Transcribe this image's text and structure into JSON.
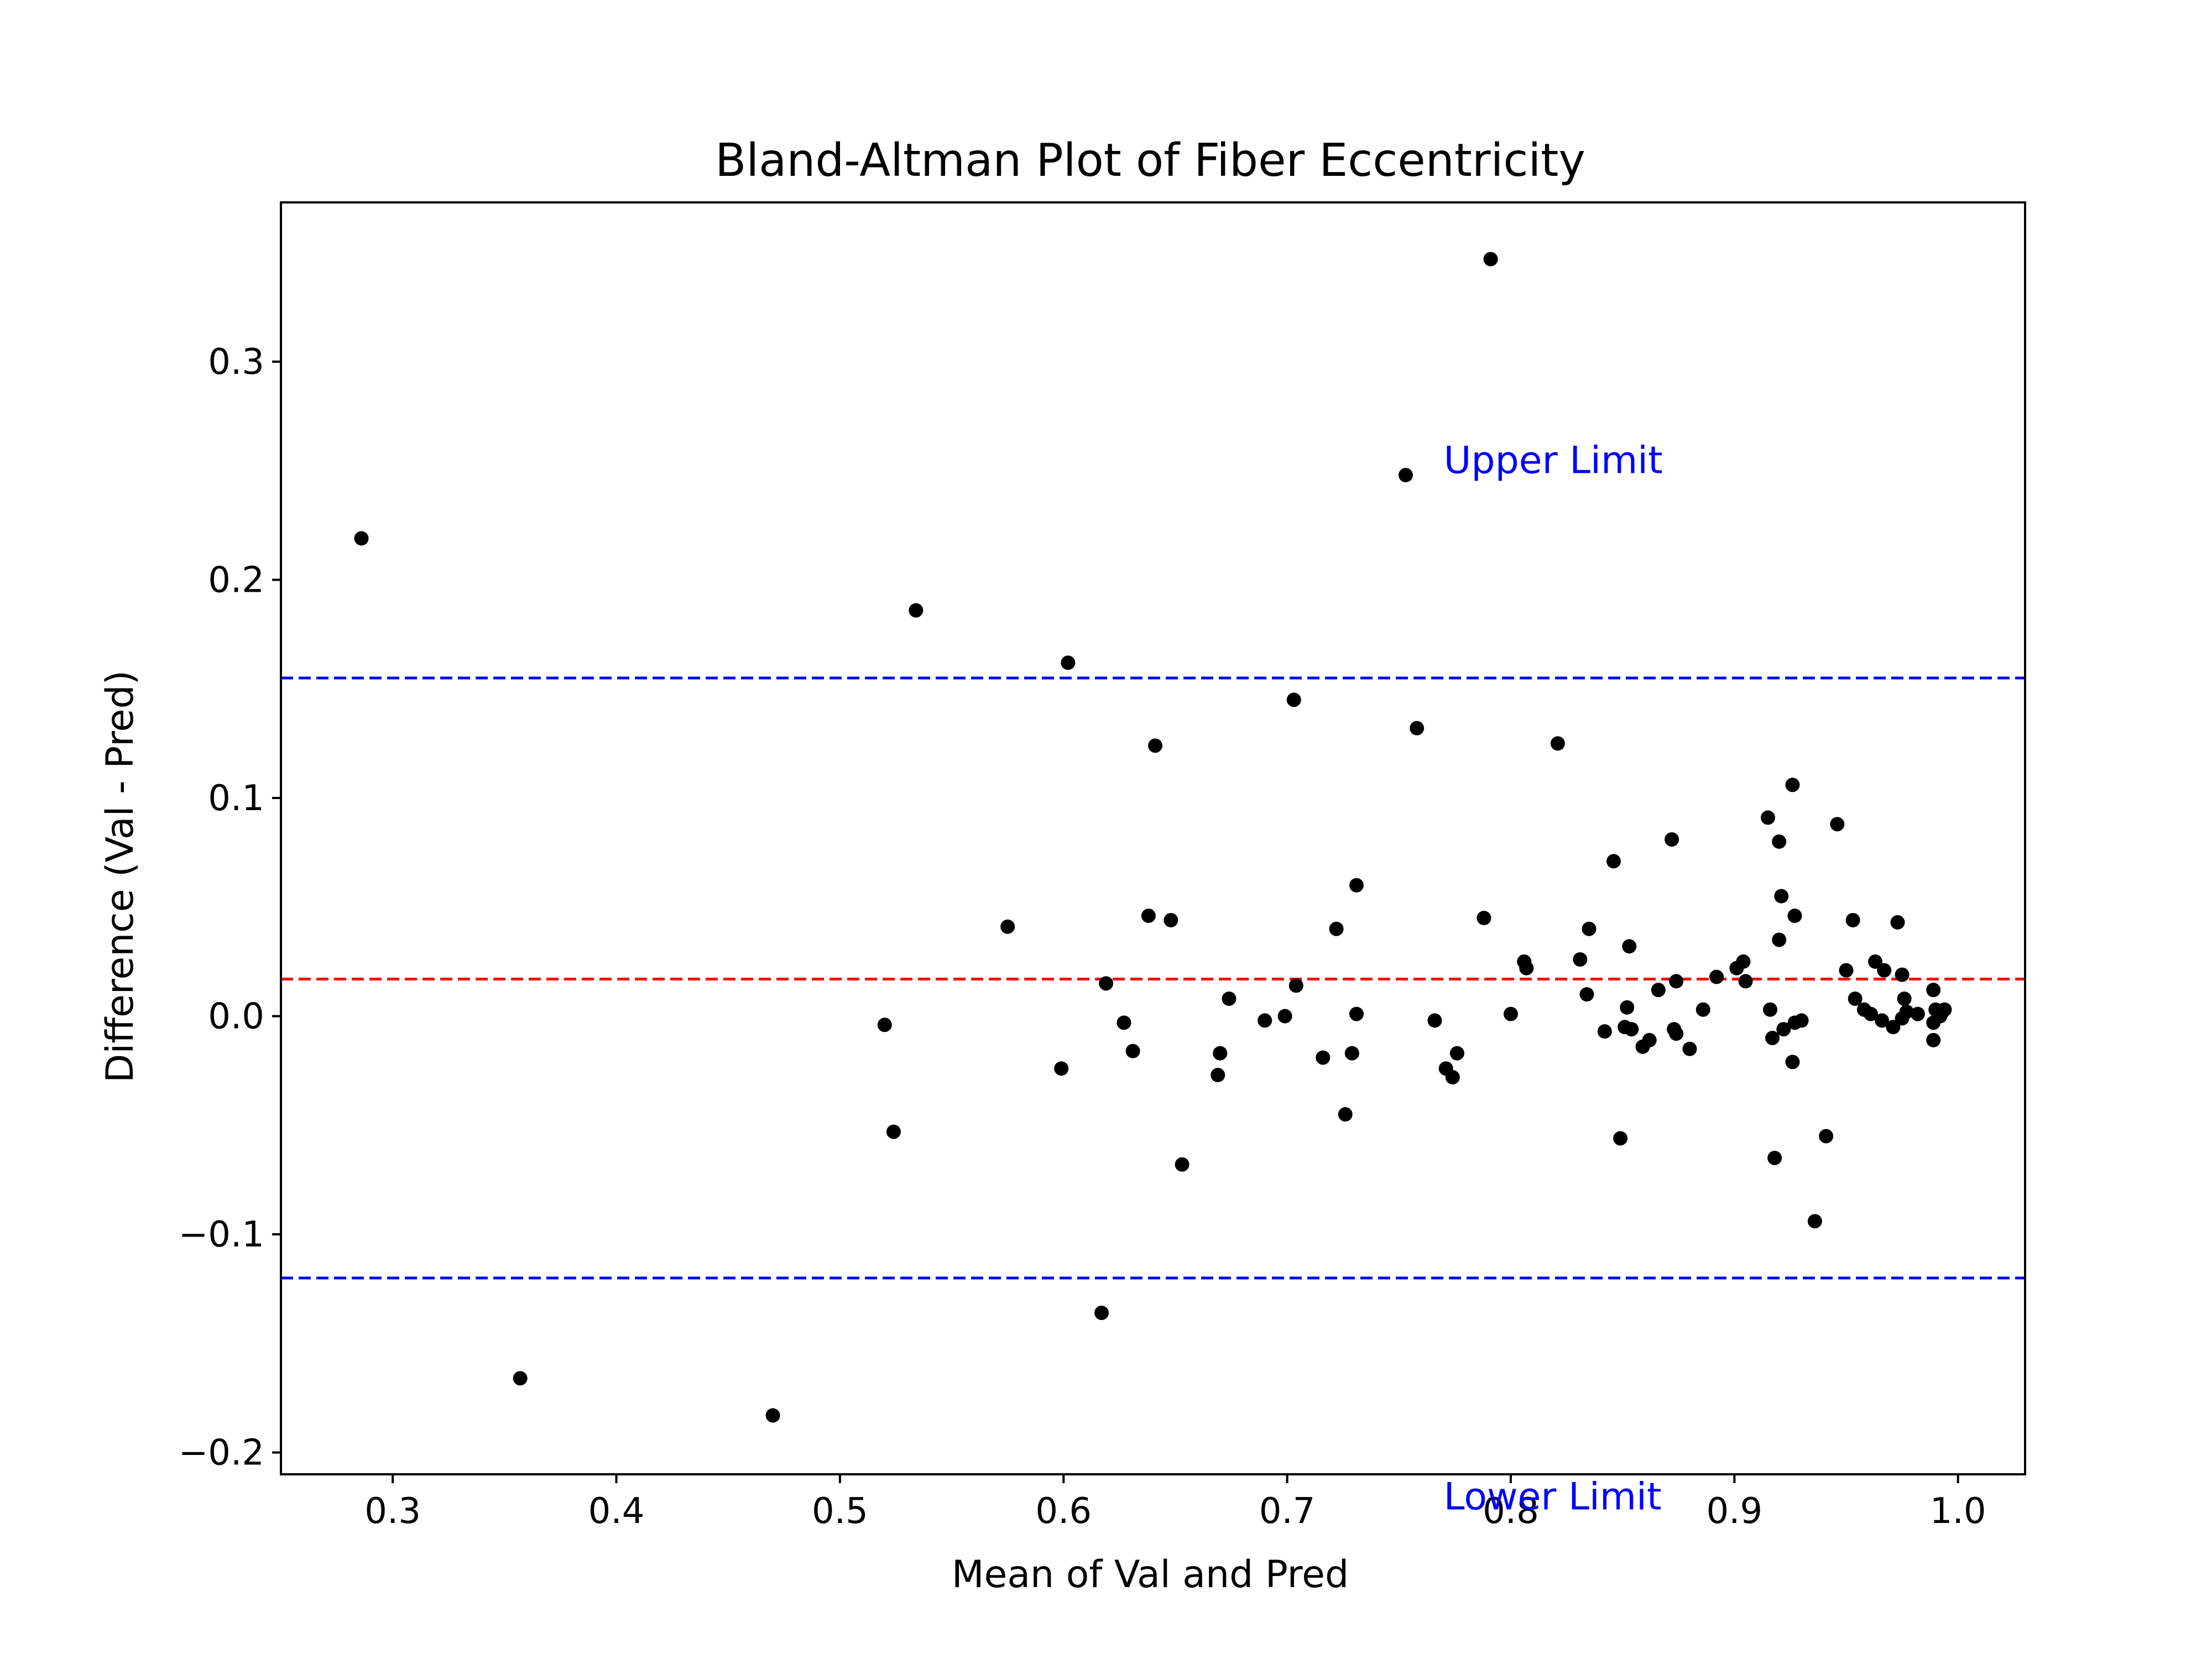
{
  "chart_data": {
    "type": "scatter",
    "title": "Bland-Altman Plot of Fiber Eccentricity",
    "xlabel": "Mean of Val and Pred",
    "ylabel": "Difference (Val - Pred)",
    "xlim": [
      0.25,
      1.03
    ],
    "ylim": [
      -0.21,
      0.373
    ],
    "xticks": [
      {
        "value": 0.3,
        "label": "0.3"
      },
      {
        "value": 0.4,
        "label": "0.4"
      },
      {
        "value": 0.5,
        "label": "0.5"
      },
      {
        "value": 0.6,
        "label": "0.6"
      },
      {
        "value": 0.7,
        "label": "0.7"
      },
      {
        "value": 0.8,
        "label": "0.8"
      },
      {
        "value": 0.9,
        "label": "0.9"
      },
      {
        "value": 1.0,
        "label": "1.0"
      }
    ],
    "yticks": [
      {
        "value": -0.2,
        "label": "−0.2"
      },
      {
        "value": -0.1,
        "label": "−0.1"
      },
      {
        "value": 0.0,
        "label": "0.0"
      },
      {
        "value": 0.1,
        "label": "0.1"
      },
      {
        "value": 0.2,
        "label": "0.2"
      },
      {
        "value": 0.3,
        "label": "0.3"
      }
    ],
    "grid": false,
    "mean_line": {
      "value": 0.017,
      "color": "#ff0000",
      "style": "dashed"
    },
    "upper_limit": {
      "value": 0.155,
      "color": "#0000ff",
      "style": "dashed",
      "label": "Upper Limit"
    },
    "lower_limit": {
      "value": -0.12,
      "color": "#0000ff",
      "style": "dashed",
      "label": "Lower Limit"
    },
    "annotations": [
      {
        "text": "Upper Limit",
        "x": 0.77,
        "y": 0.255,
        "color": "#0000ff"
      },
      {
        "text": "Lower Limit",
        "x": 0.77,
        "y": -0.22,
        "color": "#0000ff"
      }
    ],
    "point_color": "#000000",
    "points": [
      [
        0.286,
        0.219
      ],
      [
        0.357,
        -0.166
      ],
      [
        0.47,
        -0.183
      ],
      [
        0.52,
        -0.004
      ],
      [
        0.524,
        -0.053
      ],
      [
        0.534,
        0.186
      ],
      [
        0.575,
        0.041
      ],
      [
        0.599,
        -0.024
      ],
      [
        0.602,
        0.162
      ],
      [
        0.617,
        -0.136
      ],
      [
        0.619,
        0.015
      ],
      [
        0.627,
        -0.003
      ],
      [
        0.631,
        -0.016
      ],
      [
        0.638,
        0.046
      ],
      [
        0.641,
        0.124
      ],
      [
        0.648,
        0.044
      ],
      [
        0.653,
        -0.068
      ],
      [
        0.669,
        -0.027
      ],
      [
        0.67,
        -0.017
      ],
      [
        0.674,
        0.008
      ],
      [
        0.69,
        -0.002
      ],
      [
        0.699,
        0.0
      ],
      [
        0.703,
        0.145
      ],
      [
        0.704,
        0.014
      ],
      [
        0.716,
        -0.019
      ],
      [
        0.722,
        0.04
      ],
      [
        0.726,
        -0.045
      ],
      [
        0.729,
        -0.017
      ],
      [
        0.731,
        0.001
      ],
      [
        0.731,
        0.06
      ],
      [
        0.753,
        0.248
      ],
      [
        0.758,
        0.132
      ],
      [
        0.766,
        -0.002
      ],
      [
        0.771,
        -0.024
      ],
      [
        0.774,
        -0.028
      ],
      [
        0.776,
        -0.017
      ],
      [
        0.788,
        0.045
      ],
      [
        0.791,
        0.347
      ],
      [
        0.8,
        0.001
      ],
      [
        0.806,
        0.025
      ],
      [
        0.807,
        0.022
      ],
      [
        0.821,
        0.125
      ],
      [
        0.831,
        0.026
      ],
      [
        0.834,
        0.01
      ],
      [
        0.835,
        0.04
      ],
      [
        0.842,
        -0.007
      ],
      [
        0.846,
        0.071
      ],
      [
        0.849,
        -0.056
      ],
      [
        0.851,
        -0.005
      ],
      [
        0.852,
        0.004
      ],
      [
        0.853,
        0.032
      ],
      [
        0.854,
        -0.006
      ],
      [
        0.859,
        -0.014
      ],
      [
        0.862,
        -0.011
      ],
      [
        0.866,
        0.012
      ],
      [
        0.872,
        0.081
      ],
      [
        0.873,
        -0.006
      ],
      [
        0.874,
        -0.008
      ],
      [
        0.874,
        0.016
      ],
      [
        0.88,
        -0.015
      ],
      [
        0.886,
        0.003
      ],
      [
        0.892,
        0.018
      ],
      [
        0.901,
        0.022
      ],
      [
        0.904,
        0.025
      ],
      [
        0.905,
        0.016
      ],
      [
        0.915,
        0.091
      ],
      [
        0.916,
        0.003
      ],
      [
        0.917,
        -0.01
      ],
      [
        0.918,
        -0.065
      ],
      [
        0.92,
        0.08
      ],
      [
        0.92,
        0.035
      ],
      [
        0.921,
        0.055
      ],
      [
        0.922,
        -0.006
      ],
      [
        0.926,
        0.106
      ],
      [
        0.926,
        -0.021
      ],
      [
        0.927,
        0.046
      ],
      [
        0.927,
        -0.003
      ],
      [
        0.93,
        -0.002
      ],
      [
        0.936,
        -0.094
      ],
      [
        0.941,
        -0.055
      ],
      [
        0.946,
        0.088
      ],
      [
        0.95,
        0.021
      ],
      [
        0.953,
        0.044
      ],
      [
        0.954,
        0.008
      ],
      [
        0.958,
        0.003
      ],
      [
        0.961,
        0.001
      ],
      [
        0.963,
        0.025
      ],
      [
        0.966,
        -0.002
      ],
      [
        0.967,
        0.021
      ],
      [
        0.971,
        -0.005
      ],
      [
        0.973,
        0.043
      ],
      [
        0.975,
        0.019
      ],
      [
        0.975,
        -0.001
      ],
      [
        0.976,
        0.008
      ],
      [
        0.977,
        0.002
      ],
      [
        0.982,
        0.001
      ],
      [
        0.989,
        0.012
      ],
      [
        0.989,
        -0.003
      ],
      [
        0.989,
        -0.011
      ],
      [
        0.99,
        0.003
      ],
      [
        0.992,
        0.0
      ],
      [
        0.993,
        0.002
      ],
      [
        0.994,
        0.003
      ]
    ]
  }
}
